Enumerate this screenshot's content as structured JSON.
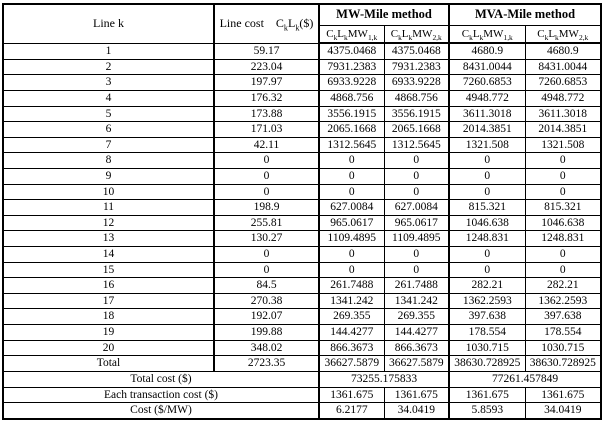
{
  "table": {
    "header": {
      "line_k": "Line k",
      "line_cost_label": "Line cost",
      "line_cost_formula": "C_{k}L_{k}($)",
      "mw_method": "MW-Mile method",
      "mva_method": "MVA-Mile method",
      "sub_headers": [
        "C_{k}L_{k}MW_{1,k}",
        "C_{k}L_{k}MW_{2,k}",
        "C_{k}L_{k}MW_{1,k}",
        "C_{k}L_{k}MW_{2,k}"
      ]
    },
    "rows": [
      {
        "k": "1",
        "cost": "59.17",
        "mw1": "4375.0468",
        "mw2": "4375.0468",
        "mva1": "4680.9",
        "mva2": "4680.9"
      },
      {
        "k": "2",
        "cost": "223.04",
        "mw1": "7931.2383",
        "mw2": "7931.2383",
        "mva1": "8431.0044",
        "mva2": "8431.0044"
      },
      {
        "k": "3",
        "cost": "197.97",
        "mw1": "6933.9228",
        "mw2": "6933.9228",
        "mva1": "7260.6853",
        "mva2": "7260.6853"
      },
      {
        "k": "4",
        "cost": "176.32",
        "mw1": "4868.756",
        "mw2": "4868.756",
        "mva1": "4948.772",
        "mva2": "4948.772"
      },
      {
        "k": "5",
        "cost": "173.88",
        "mw1": "3556.1915",
        "mw2": "3556.1915",
        "mva1": "3611.3018",
        "mva2": "3611.3018"
      },
      {
        "k": "6",
        "cost": "171.03",
        "mw1": "2065.1668",
        "mw2": "2065.1668",
        "mva1": "2014.3851",
        "mva2": "2014.3851"
      },
      {
        "k": "7",
        "cost": "42.11",
        "mw1": "1312.5645",
        "mw2": "1312.5645",
        "mva1": "1321.508",
        "mva2": "1321.508"
      },
      {
        "k": "8",
        "cost": "0",
        "mw1": "0",
        "mw2": "0",
        "mva1": "0",
        "mva2": "0"
      },
      {
        "k": "9",
        "cost": "0",
        "mw1": "0",
        "mw2": "0",
        "mva1": "0",
        "mva2": "0"
      },
      {
        "k": "10",
        "cost": "0",
        "mw1": "0",
        "mw2": "0",
        "mva1": "0",
        "mva2": "0"
      },
      {
        "k": "11",
        "cost": "198.9",
        "mw1": "627.0084",
        "mw2": "627.0084",
        "mva1": "815.321",
        "mva2": "815.321"
      },
      {
        "k": "12",
        "cost": "255.81",
        "mw1": "965.0617",
        "mw2": "965.0617",
        "mva1": "1046.638",
        "mva2": "1046.638"
      },
      {
        "k": "13",
        "cost": "130.27",
        "mw1": "1109.4895",
        "mw2": "1109.4895",
        "mva1": "1248.831",
        "mva2": "1248.831"
      },
      {
        "k": "14",
        "cost": "0",
        "mw1": "0",
        "mw2": "0",
        "mva1": "0",
        "mva2": "0"
      },
      {
        "k": "15",
        "cost": "0",
        "mw1": "0",
        "mw2": "0",
        "mva1": "0",
        "mva2": "0"
      },
      {
        "k": "16",
        "cost": "84.5",
        "mw1": "261.7488",
        "mw2": "261.7488",
        "mva1": "282.21",
        "mva2": "282.21"
      },
      {
        "k": "17",
        "cost": "270.38",
        "mw1": "1341.242",
        "mw2": "1341.242",
        "mva1": "1362.2593",
        "mva2": "1362.2593"
      },
      {
        "k": "18",
        "cost": "192.07",
        "mw1": "269.355",
        "mw2": "269.355",
        "mva1": "397.638",
        "mva2": "397.638"
      },
      {
        "k": "19",
        "cost": "199.88",
        "mw1": "144.4277",
        "mw2": "144.4277",
        "mva1": "178.554",
        "mva2": "178.554"
      },
      {
        "k": "20",
        "cost": "348.02",
        "mw1": "866.3673",
        "mw2": "866.3673",
        "mva1": "1030.715",
        "mva2": "1030.715"
      }
    ],
    "total_row": {
      "label": "Total",
      "cost": "2723.35",
      "mw1": "36627.5879",
      "mw2": "36627.5879",
      "mva1": "38630.728925",
      "mva2": "38630.728925"
    },
    "footer": {
      "total_cost_label": "Total cost ($)",
      "total_cost_mw": "73255.175833",
      "total_cost_mva": "77261.457849",
      "each_transaction_label": "Each transaction cost ($)",
      "each_transaction_values": [
        "1361.675",
        "1361.675",
        "1361.675",
        "1361.675"
      ],
      "cost_per_mw_label": "Cost ($/MW)",
      "cost_per_mw_values": [
        "6.2177",
        "34.0419",
        "5.8593",
        "34.0419"
      ]
    }
  }
}
